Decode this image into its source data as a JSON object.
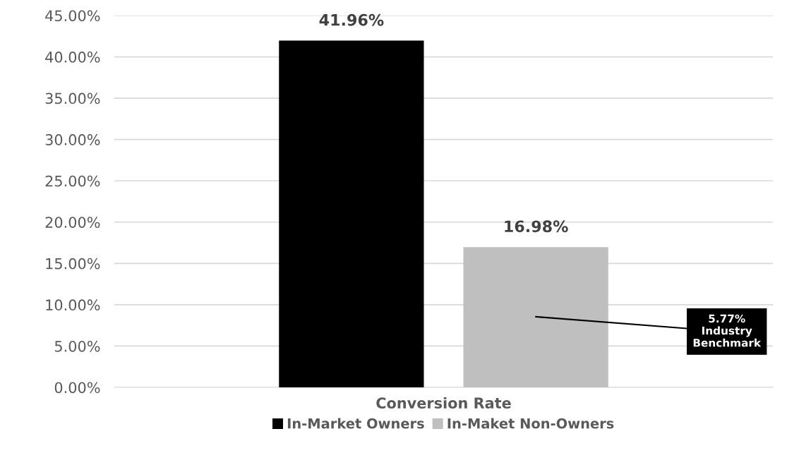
{
  "chart_data": {
    "type": "bar",
    "categories": [
      "Conversion Rate"
    ],
    "series": [
      {
        "name": "In-Market Owners",
        "color": "#000000",
        "values": [
          41.96
        ]
      },
      {
        "name": "In-Maket Non-Owners",
        "color": "#bfbfbf",
        "values": [
          16.98
        ]
      }
    ],
    "ylim": [
      0,
      45
    ],
    "yticks": [
      {
        "value": 0,
        "label": "0.00%"
      },
      {
        "value": 5,
        "label": "5.00%"
      },
      {
        "value": 10,
        "label": "10.00%"
      },
      {
        "value": 15,
        "label": "15.00%"
      },
      {
        "value": 20,
        "label": "20.00%"
      },
      {
        "value": 25,
        "label": "25.00%"
      },
      {
        "value": 30,
        "label": "30.00%"
      },
      {
        "value": 35,
        "label": "35.00%"
      },
      {
        "value": 40,
        "label": "40.00%"
      },
      {
        "value": 45,
        "label": "45.00%"
      }
    ],
    "value_labels": [
      "41.96%",
      "16.98%"
    ],
    "annotations": [
      "5.77%\nIndustry\nBenchmark"
    ],
    "grid": "y",
    "legend": "bottom"
  }
}
